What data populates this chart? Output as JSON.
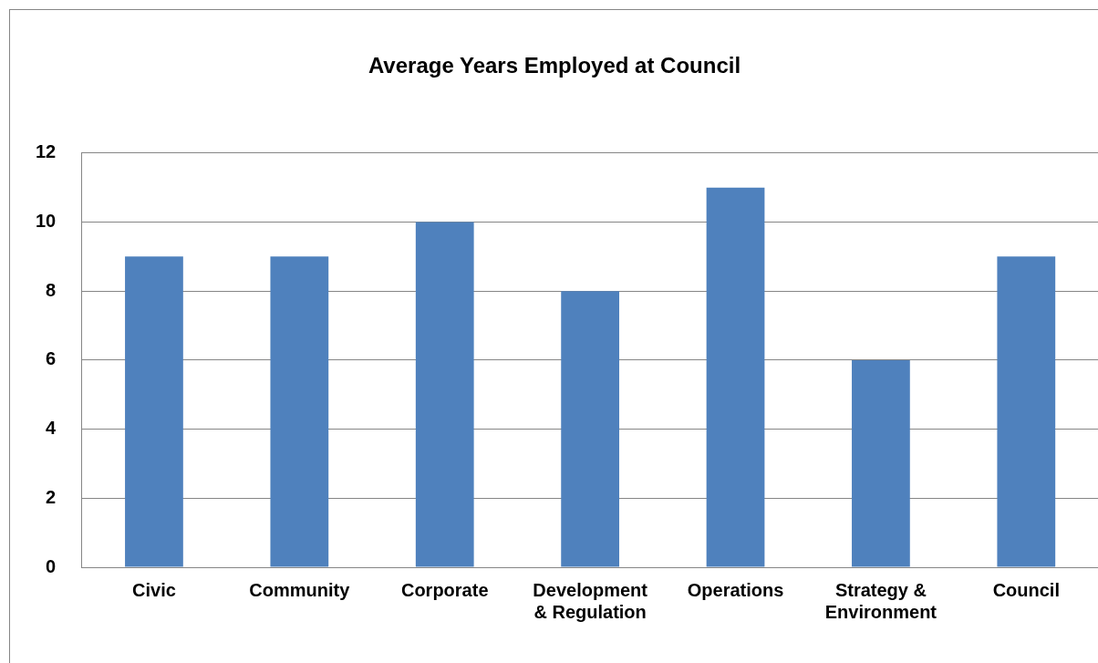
{
  "chart_data": {
    "type": "bar",
    "title": "Average Years Employed at Council",
    "categories": [
      "Civic",
      "Community",
      "Corporate",
      "Development & Regulation",
      "Operations",
      "Strategy & Environment",
      "Council"
    ],
    "values": [
      9,
      9,
      10,
      8,
      11,
      6,
      9
    ],
    "color": "#4f81bd",
    "ylim": [
      0,
      12
    ],
    "yticks": [
      0,
      2,
      4,
      6,
      8,
      10,
      12
    ],
    "grid": "y",
    "legend": false
  }
}
